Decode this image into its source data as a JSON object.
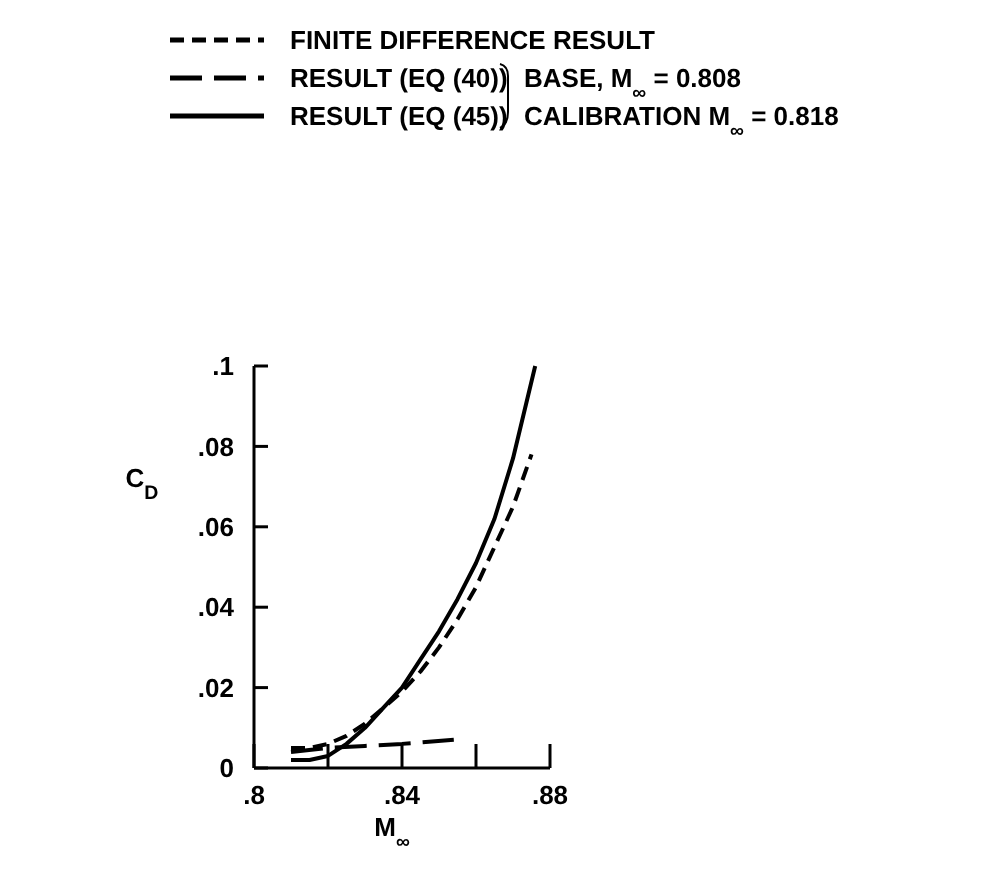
{
  "chart_data": {
    "type": "line",
    "xlabel": "M$_{∞}$",
    "ylabel": "C$_{D}$",
    "xlim": [
      0.8,
      0.88
    ],
    "ylim": [
      0,
      0.1
    ],
    "xticks": [
      {
        "value": 0.8,
        "label": ".8"
      },
      {
        "value": 0.82,
        "label": null
      },
      {
        "value": 0.84,
        "label": ".84"
      },
      {
        "value": 0.86,
        "label": null
      },
      {
        "value": 0.88,
        "label": ".88"
      }
    ],
    "yticks": [
      0,
      {
        "value": 0.02,
        "label": ".02"
      },
      {
        "value": 0.04,
        "label": ".04"
      },
      {
        "value": 0.06,
        "label": ".06"
      },
      {
        "value": 0.08,
        "label": ".08"
      },
      {
        "value": 0.1,
        "label": ".1"
      }
    ],
    "legend": "top left",
    "grid": false,
    "annotations": [
      "BASE, M$_{∞}$ = 0.808",
      "CALIBRATION M$_{∞}$ = 0.818"
    ],
    "series": [
      {
        "name": "FINITE DIFFERENCE RESULT",
        "color": "#000000",
        "line_style": "dashed",
        "x": [
          0.81,
          0.815,
          0.82,
          0.825,
          0.83,
          0.835,
          0.84,
          0.845,
          0.85,
          0.855,
          0.86,
          0.865,
          0.87,
          0.875
        ],
        "values": [
          0.005,
          0.005,
          0.006,
          0.008,
          0.011,
          0.015,
          0.019,
          0.024,
          0.03,
          0.037,
          0.045,
          0.055,
          0.065,
          0.078
        ]
      },
      {
        "name": "RESULT (EQ (40))",
        "color": "#000000",
        "line_style": "longdash",
        "x": [
          0.81,
          0.82,
          0.83,
          0.84,
          0.854
        ],
        "values": [
          0.004,
          0.005,
          0.0055,
          0.006,
          0.007
        ]
      },
      {
        "name": "RESULT (EQ (45))",
        "color": "#000000",
        "line_style": "solid",
        "x": [
          0.81,
          0.815,
          0.82,
          0.825,
          0.83,
          0.835,
          0.84,
          0.845,
          0.85,
          0.855,
          0.86,
          0.865,
          0.87,
          0.876
        ],
        "values": [
          0.002,
          0.002,
          0.003,
          0.006,
          0.01,
          0.015,
          0.02,
          0.027,
          0.034,
          0.042,
          0.051,
          0.062,
          0.077,
          0.1
        ]
      }
    ]
  }
}
